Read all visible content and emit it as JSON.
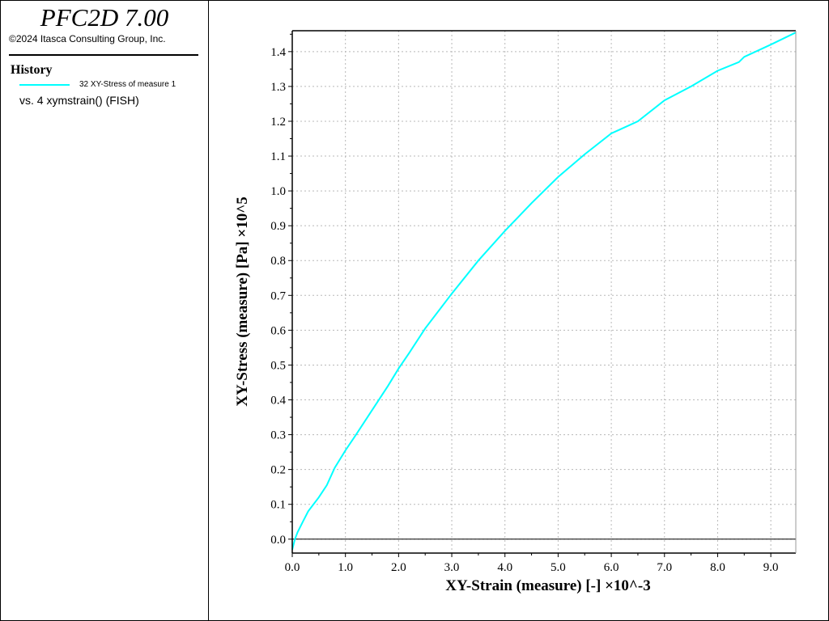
{
  "app": {
    "title": "PFC2D 7.00",
    "copyright": "©2024 Itasca Consulting Group, Inc."
  },
  "legend": {
    "header": "History",
    "entries": [
      {
        "label": "32 XY-Stress of measure 1",
        "color": "#00ffff"
      }
    ],
    "vs_label": "vs. 4 xymstrain() (FISH)"
  },
  "chart_data": {
    "type": "line",
    "xlabel": "XY-Strain (measure) [-] ×10^-3",
    "ylabel": "XY-Stress (measure) [Pa] ×10^5",
    "xlim": [
      0.0,
      9.47
    ],
    "ylim": [
      -0.04,
      1.46
    ],
    "x_ticks": [
      "0.0",
      "1.0",
      "2.0",
      "3.0",
      "4.0",
      "5.0",
      "6.0",
      "7.0",
      "8.0",
      "9.0"
    ],
    "y_ticks": [
      "0.0",
      "0.1",
      "0.2",
      "0.3",
      "0.4",
      "0.5",
      "0.6",
      "0.7",
      "0.8",
      "0.9",
      "1.0",
      "1.1",
      "1.2",
      "1.3",
      "1.4"
    ],
    "grid": true,
    "zero_line": true,
    "series": [
      {
        "name": "32 XY-Stress of measure 1",
        "color": "#00ffff",
        "x": [
          0.0,
          0.05,
          0.1,
          0.2,
          0.3,
          0.5,
          0.65,
          0.8,
          1.0,
          1.2,
          1.5,
          1.8,
          2.0,
          2.2,
          2.5,
          3.0,
          3.5,
          4.0,
          4.5,
          5.0,
          5.5,
          6.0,
          6.5,
          7.0,
          7.5,
          8.0,
          8.4,
          8.5,
          9.0,
          9.47
        ],
        "y": [
          -0.03,
          0.0,
          0.02,
          0.05,
          0.08,
          0.12,
          0.155,
          0.205,
          0.255,
          0.3,
          0.37,
          0.44,
          0.49,
          0.535,
          0.605,
          0.705,
          0.8,
          0.885,
          0.965,
          1.04,
          1.105,
          1.165,
          1.2,
          1.26,
          1.3,
          1.345,
          1.37,
          1.385,
          1.42,
          1.455
        ]
      }
    ]
  }
}
